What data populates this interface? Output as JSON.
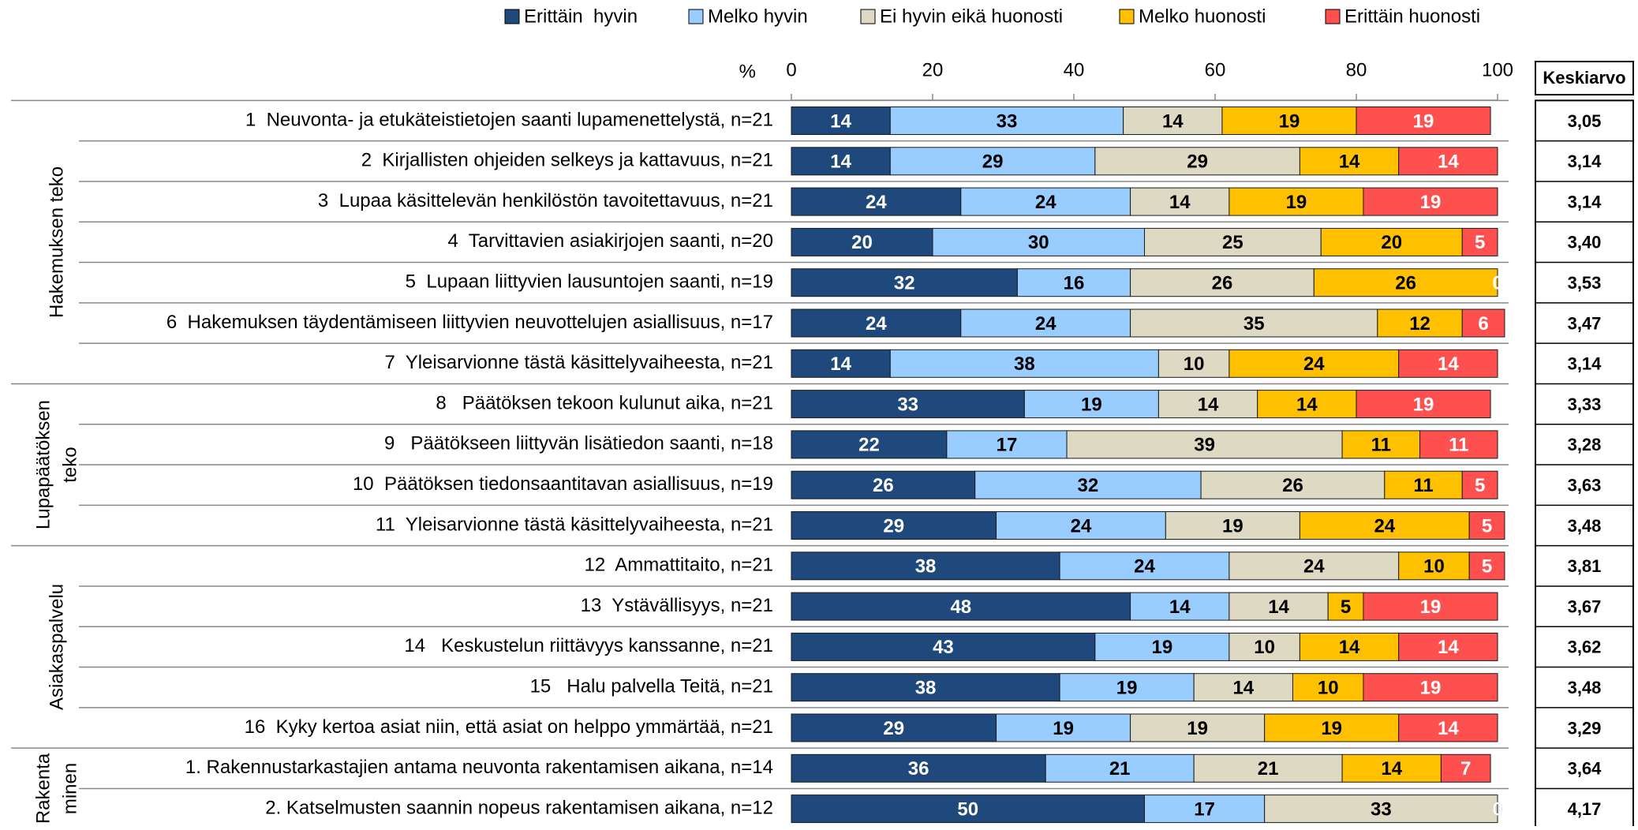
{
  "chart_data": {
    "type": "stacked-barh",
    "x_unit_label": "%",
    "xlim": [
      0,
      100
    ],
    "xticks": [
      0,
      20,
      40,
      60,
      80,
      100
    ],
    "groups": [
      {
        "label_lines": [
          "Hakemuksen teko"
        ]
      },
      {
        "label_lines": [
          "Lupapäätöksen",
          "teko"
        ]
      },
      {
        "label_lines": [
          "Asiakaspalvelu"
        ]
      },
      {
        "label_lines": [
          "Rakenta",
          "minen"
        ]
      }
    ],
    "categories": [
      "1  Neuvonta- ja etukäteistietojen saanti lupamenettelystä, n=21",
      "2  Kirjallisten ohjeiden selkeys ja kattavuus, n=21",
      "3  Lupaa käsittelevän henkilöstön tavoitettavuus, n=21",
      "4  Tarvittavien asiakirjojen saanti, n=20",
      "5  Lupaan liittyvien lausuntojen saanti, n=19",
      "6  Hakemuksen täydentämiseen liittyvien neuvottelujen asiallisuus, n=17",
      "7  Yleisarvionne tästä käsittelyvaiheesta, n=21",
      "8   Päätöksen tekoon kulunut aika, n=21",
      "9   Päätökseen liittyvän lisätiedon saanti, n=18",
      "10  Päätöksen tiedonsaantitavan asiallisuus, n=19",
      "11  Yleisarvionne tästä käsittelyvaiheesta, n=21",
      "12  Ammattitaito, n=21",
      "13  Ystävällisyys, n=21",
      "14   Keskustelun riittävyys kanssanne, n=21",
      "15   Halu palvella Teitä, n=21",
      "16  Kyky kertoa asiat niin, että asiat on helppo ymmärtää, n=21",
      "1. Rakennustarkastajien antama neuvonta rakentamisen aikana, n=14",
      "2. Katselmusten saannin nopeus rakentamisen aikana, n=12"
    ],
    "series": [
      {
        "name": "Erittäin  hyvin",
        "color": "#1f497d",
        "values": [
          14,
          14,
          24,
          20,
          32,
          24,
          14,
          33,
          22,
          26,
          29,
          38,
          48,
          43,
          38,
          29,
          36,
          50
        ]
      },
      {
        "name": "Melko hyvin",
        "color": "#99ccff",
        "values": [
          33,
          29,
          24,
          30,
          16,
          24,
          38,
          19,
          17,
          32,
          24,
          24,
          14,
          19,
          19,
          19,
          21,
          17
        ]
      },
      {
        "name": "Ei hyvin eikä huonosti",
        "color": "#ddd9c3",
        "values": [
          14,
          29,
          14,
          25,
          26,
          35,
          10,
          14,
          39,
          26,
          19,
          24,
          14,
          10,
          14,
          19,
          21,
          33
        ]
      },
      {
        "name": "Melko huonosti",
        "color": "#ffc000",
        "values": [
          19,
          14,
          19,
          20,
          26,
          12,
          24,
          14,
          11,
          11,
          24,
          10,
          5,
          14,
          10,
          19,
          14,
          0
        ]
      },
      {
        "name": "Erittäin huonosti",
        "color": "#ff5050",
        "values": [
          19,
          14,
          19,
          5,
          0,
          6,
          14,
          19,
          11,
          5,
          5,
          5,
          19,
          14,
          19,
          14,
          7,
          0
        ]
      }
    ],
    "means": {
      "title": "Keskiarvo",
      "values": [
        "3,05",
        "3,14",
        "3,14",
        "3,40",
        "3,53",
        "3,47",
        "3,14",
        "3,33",
        "3,28",
        "3,63",
        "3,48",
        "3,81",
        "3,67",
        "3,62",
        "3,48",
        "3,29",
        "3,64",
        "4,17"
      ]
    },
    "legend": "top"
  }
}
